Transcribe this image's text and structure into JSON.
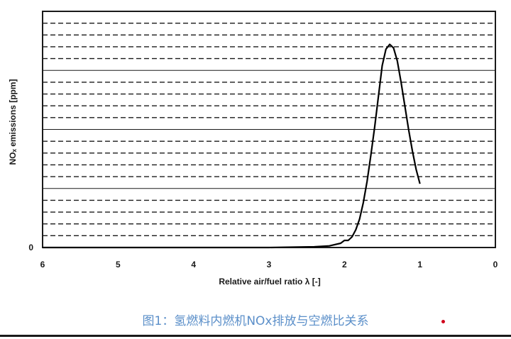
{
  "chart_data": {
    "type": "line",
    "title": "",
    "xlabel": "Relative air/fuel ratio λ [-]",
    "ylabel": "NOₓ emissions  [ppm]",
    "x_ticks": [
      "6",
      "5",
      "4",
      "3",
      "2",
      "1",
      "0"
    ],
    "x_tick_values": [
      6,
      5,
      4,
      3,
      2,
      1,
      0
    ],
    "x_reversed": true,
    "xlim": [
      6,
      0
    ],
    "y_ticks": [
      "0"
    ],
    "ylim": [
      0,
      1
    ],
    "grid": true,
    "series": [
      {
        "color": "#000000",
        "x": [
          6.0,
          5.0,
          4.0,
          3.0,
          2.4,
          2.2,
          2.05,
          2.0,
          1.95,
          1.9,
          1.85,
          1.8,
          1.75,
          1.7,
          1.65,
          1.6,
          1.55,
          1.5,
          1.45,
          1.4,
          1.35,
          1.3,
          1.25,
          1.2,
          1.15,
          1.1,
          1.05,
          1.0
        ],
        "y": [
          0.0,
          0.0,
          0.0,
          0.0,
          0.003,
          0.007,
          0.018,
          0.03,
          0.03,
          0.045,
          0.075,
          0.12,
          0.19,
          0.28,
          0.39,
          0.51,
          0.64,
          0.77,
          0.84,
          0.86,
          0.845,
          0.79,
          0.7,
          0.6,
          0.5,
          0.41,
          0.33,
          0.27
        ]
      }
    ]
  },
  "caption": "图1：氢燃料内燃机NOx排放与空燃比关系",
  "colors": {
    "caption": "#5b8fc9",
    "dot": "#d0021b",
    "line": "#000000"
  }
}
